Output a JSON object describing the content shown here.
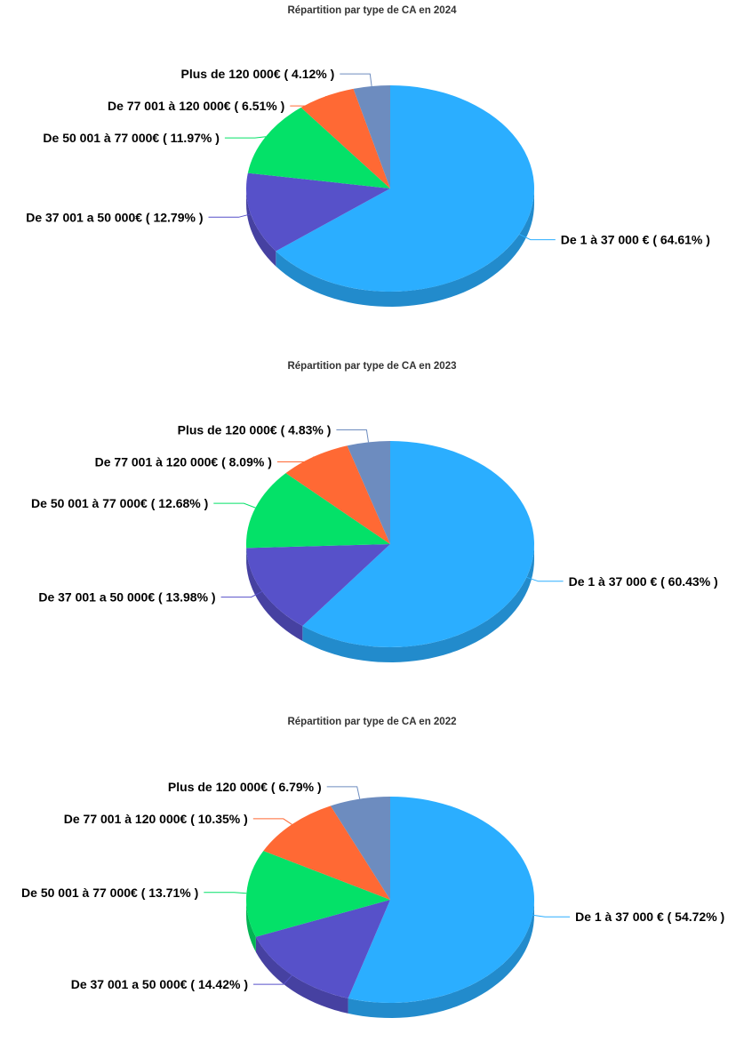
{
  "colors": {
    "de_1_a_37000": "#2BAEFF",
    "de_37001_a_50000": "#5751C9",
    "de_50001_a_77000": "#04E168",
    "de_77001_a_120000": "#FF6934",
    "plus_de_120000": "#6D8CBF"
  },
  "chart_data": [
    {
      "type": "pie",
      "title": "Répartition par type de CA en 2024",
      "slices": [
        {
          "label": "De 1 à 37 000 € ( 64.61% )",
          "value": 64.61,
          "color": "#2BAEFF"
        },
        {
          "label": "De 37 001 a 50 000€ ( 12.79% )",
          "value": 12.79,
          "color": "#5751C9"
        },
        {
          "label": "De 50 001 à 77 000€ ( 11.97% )",
          "value": 11.97,
          "color": "#04E168"
        },
        {
          "label": "De 77 001 à 120 000€ ( 6.51% )",
          "value": 6.51,
          "color": "#FF6934"
        },
        {
          "label": "Plus de 120 000€ ( 4.12% )",
          "value": 4.12,
          "color": "#6D8CBF"
        }
      ]
    },
    {
      "type": "pie",
      "title": "Répartition par type de CA en 2023",
      "slices": [
        {
          "label": "De 1 à 37 000 € ( 60.43% )",
          "value": 60.43,
          "color": "#2BAEFF"
        },
        {
          "label": "De 37 001 a 50 000€ ( 13.98% )",
          "value": 13.98,
          "color": "#5751C9"
        },
        {
          "label": "De 50 001 à 77 000€ ( 12.68% )",
          "value": 12.68,
          "color": "#04E168"
        },
        {
          "label": "De 77 001 à 120 000€ ( 8.09% )",
          "value": 8.09,
          "color": "#FF6934"
        },
        {
          "label": "Plus de 120 000€ ( 4.83% )",
          "value": 4.83,
          "color": "#6D8CBF"
        }
      ]
    },
    {
      "type": "pie",
      "title": "Répartition par type de CA en 2022",
      "slices": [
        {
          "label": "De 1 à 37 000 € ( 54.72% )",
          "value": 54.72,
          "color": "#2BAEFF"
        },
        {
          "label": "De 37 001 a 50 000€ ( 14.42% )",
          "value": 14.42,
          "color": "#5751C9"
        },
        {
          "label": "De 50 001 à 77 000€ ( 13.71% )",
          "value": 13.71,
          "color": "#04E168"
        },
        {
          "label": "De 77 001 à 120 000€ ( 10.35% )",
          "value": 10.35,
          "color": "#FF6934"
        },
        {
          "label": "Plus de 120 000€ ( 6.79% )",
          "value": 6.79,
          "color": "#6D8CBF"
        }
      ]
    }
  ]
}
